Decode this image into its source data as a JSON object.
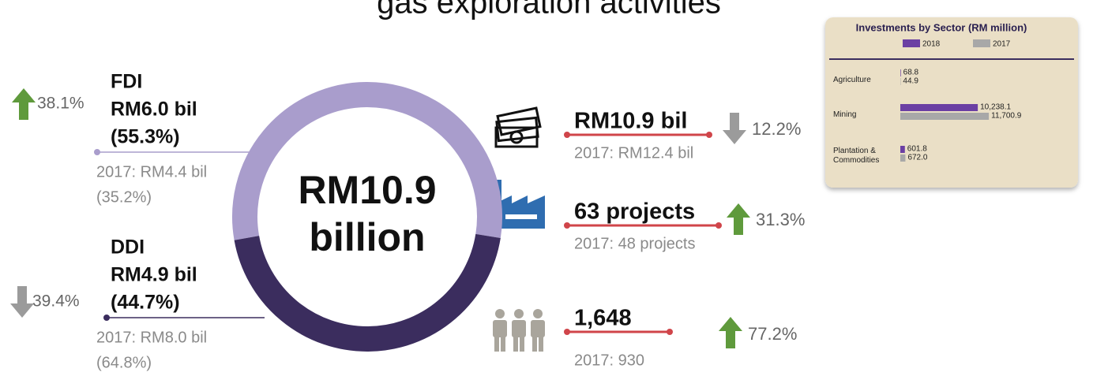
{
  "title": "gas exploration activities",
  "chart_data": [
    {
      "type": "donut",
      "center_label": [
        "RM10.9",
        "billion"
      ],
      "categories": [
        "FDI",
        "DDI"
      ],
      "values": [
        55.3,
        44.7
      ],
      "value_labels": [
        "(55.3%)",
        "(44.7%)"
      ],
      "colors": [
        "#a99dcc",
        "#3b2d5e"
      ],
      "amounts": [
        "RM6.0 bil",
        "RM4.9 bil"
      ],
      "changes": [
        "38.1%",
        "39.4%"
      ],
      "change_directions": [
        "up",
        "down"
      ],
      "prior": [
        "2017: RM4.4 bil",
        "2017: RM8.0 bil"
      ],
      "prior_shares": [
        "(35.2%)",
        "(64.8%)"
      ]
    },
    {
      "type": "bar",
      "orientation": "horizontal",
      "title": "Investments by Sector (RM million)",
      "categories": [
        "Agriculture",
        "Mining",
        "Plantation & Commodities"
      ],
      "series": [
        {
          "name": "2018",
          "color": "#6b3fa3",
          "values": [
            68.8,
            10238.1,
            601.8
          ],
          "value_labels": [
            "68.8",
            "10,238.1",
            "601.8"
          ]
        },
        {
          "name": "2017",
          "color": "#a8a8a8",
          "values": [
            44.9,
            11700.9,
            672.0
          ],
          "value_labels": [
            "44.9",
            "11,700.9",
            "672.0"
          ]
        }
      ],
      "xlim": [
        0,
        12000
      ]
    }
  ],
  "stats": [
    {
      "value": "RM10.9 bil",
      "prior": "2017: RM12.4 bil",
      "change": "12.2%",
      "direction": "down"
    },
    {
      "value": "63 projects",
      "prior": "2017: 48 projects",
      "change": "31.3%",
      "direction": "up"
    },
    {
      "value": "1,648",
      "prior": "2017: 930",
      "change": "77.2%",
      "direction": "up"
    }
  ]
}
